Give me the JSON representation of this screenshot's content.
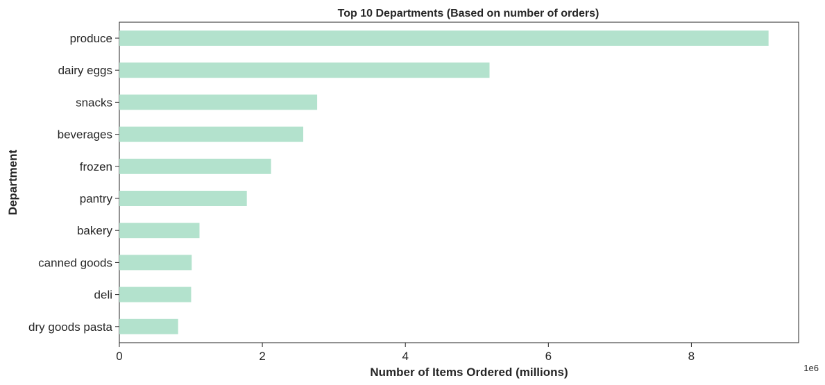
{
  "chart_data": {
    "type": "bar",
    "orientation": "horizontal",
    "title": "Top 10 Departments (Based on number of orders)",
    "xlabel": "Number of Items Ordered (millions)",
    "ylabel": "Department",
    "x_offset_label": "1e6",
    "xlim": [
      0,
      9500000
    ],
    "x_ticks": [
      0,
      2000000,
      4000000,
      6000000,
      8000000
    ],
    "x_tick_labels": [
      "0",
      "2",
      "4",
      "6",
      "8"
    ],
    "grid": false,
    "categories": [
      "produce",
      "dairy eggs",
      "snacks",
      "beverages",
      "frozen",
      "pantry",
      "bakery",
      "canned goods",
      "deli",
      "dry goods pasta"
    ],
    "values": [
      9079273,
      5177182,
      2766406,
      2571901,
      2121731,
      1782705,
      1120828,
      1012074,
      1003834,
      822136
    ],
    "colors": {
      "bar": "#b3e2cd",
      "axis": "#262626",
      "text": "#262626",
      "background": "#ffffff"
    }
  }
}
